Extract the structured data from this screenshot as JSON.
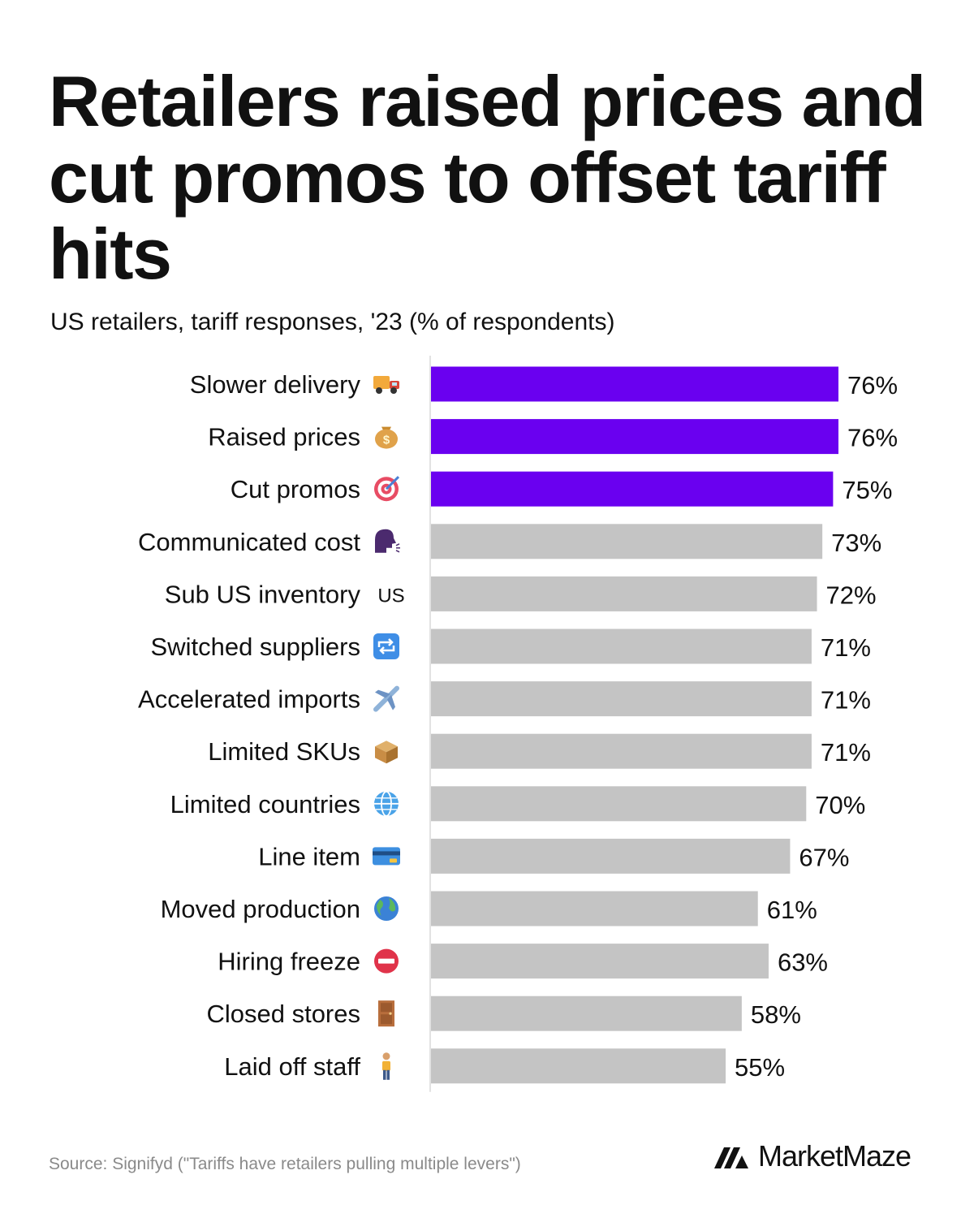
{
  "header": {
    "title": "Retailers raised prices and cut promos to offset tariff hits",
    "subtitle": "US retailers, tariff responses, '23 (% of respondents)"
  },
  "footer": {
    "source": "Source: Signifyd (\"Tariffs have retailers pulling multiple levers\")",
    "brand": "MarketMaze"
  },
  "colors": {
    "highlight": "#6a00f0",
    "default": "#c4c4c4",
    "axis": "#d9d9d9"
  },
  "chart_data": {
    "type": "bar",
    "orientation": "horizontal",
    "categories": [
      "Slower delivery",
      "Raised prices",
      "Cut promos",
      "Communicated cost",
      "Sub US inventory",
      "Switched suppliers",
      "Accelerated imports",
      "Limited SKUs",
      "Limited countries",
      "Line item",
      "Moved production",
      "Hiring freeze",
      "Closed stores",
      "Laid off staff"
    ],
    "icons": [
      "delivery-truck-icon",
      "money-bag-icon",
      "target-icon",
      "speaking-head-icon",
      "us-flag-icon",
      "repeat-arrows-icon",
      "airplane-icon",
      "package-icon",
      "globe-meridians-icon",
      "credit-card-icon",
      "earth-globe-icon",
      "no-entry-icon",
      "door-icon",
      "standing-person-icon"
    ],
    "icon_text": [
      "",
      "",
      "",
      "",
      "US",
      "",
      "",
      "",
      "",
      "",
      "",
      "",
      "",
      ""
    ],
    "values": [
      76,
      76,
      75,
      73,
      72,
      71,
      71,
      71,
      70,
      67,
      61,
      63,
      58,
      55
    ],
    "value_labels": [
      "76%",
      "76%",
      "75%",
      "73%",
      "72%",
      "71%",
      "71%",
      "71%",
      "70%",
      "67%",
      "61%",
      "63%",
      "58%",
      "55%"
    ],
    "highlighted": [
      true,
      true,
      true,
      false,
      false,
      false,
      false,
      false,
      false,
      false,
      false,
      false,
      false,
      false
    ],
    "xlim": [
      0,
      100
    ],
    "grid": false,
    "legend": "none"
  }
}
